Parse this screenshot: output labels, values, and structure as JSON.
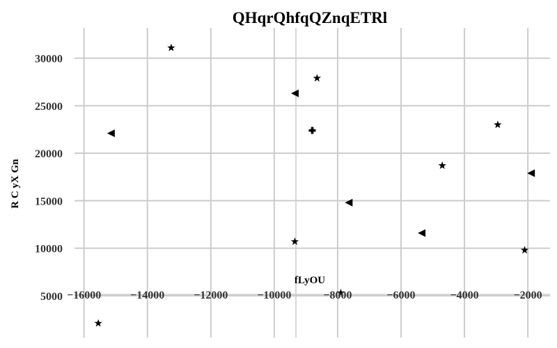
{
  "chart_data": {
    "type": "scatter",
    "title": "QHqrQhfqQZnqETRl",
    "xlabel": "fLyOU",
    "ylabel": "R C yX Gn",
    "xlim": [
      -16300,
      -1300
    ],
    "ylim": [
      600,
      33200
    ],
    "xticks": [
      -16000,
      -14000,
      -12000,
      -10000,
      -8000,
      -6000,
      -4000,
      -2000
    ],
    "xtick_labels": [
      "−16000",
      "−14000",
      "−12000",
      "−10000",
      "−8000",
      "−6000",
      "−4000",
      "−2000"
    ],
    "yticks": [
      5000,
      10000,
      15000,
      20000,
      25000,
      30000
    ],
    "ytick_labels": [
      "5000",
      "10000",
      "15000",
      "20000",
      "25000",
      "30000"
    ],
    "grid": true,
    "points": [
      {
        "x": -13250,
        "y": 31100,
        "marker": "star"
      },
      {
        "x": -8650,
        "y": 27900,
        "marker": "star"
      },
      {
        "x": -9350,
        "y": 26300,
        "marker": "triangle-left"
      },
      {
        "x": -15150,
        "y": 22100,
        "marker": "triangle-left"
      },
      {
        "x": -8800,
        "y": 22400,
        "marker": "plus"
      },
      {
        "x": -2950,
        "y": 23000,
        "marker": "star"
      },
      {
        "x": -4700,
        "y": 18700,
        "marker": "star"
      },
      {
        "x": -1900,
        "y": 17900,
        "marker": "triangle-left"
      },
      {
        "x": -7650,
        "y": 14800,
        "marker": "triangle-left"
      },
      {
        "x": -5350,
        "y": 11600,
        "marker": "triangle-left"
      },
      {
        "x": -9350,
        "y": 10700,
        "marker": "star"
      },
      {
        "x": -2100,
        "y": 9800,
        "marker": "star"
      },
      {
        "x": -15550,
        "y": 2100,
        "marker": "star"
      },
      {
        "x": -7900,
        "y": 5300,
        "marker": "star"
      }
    ]
  }
}
